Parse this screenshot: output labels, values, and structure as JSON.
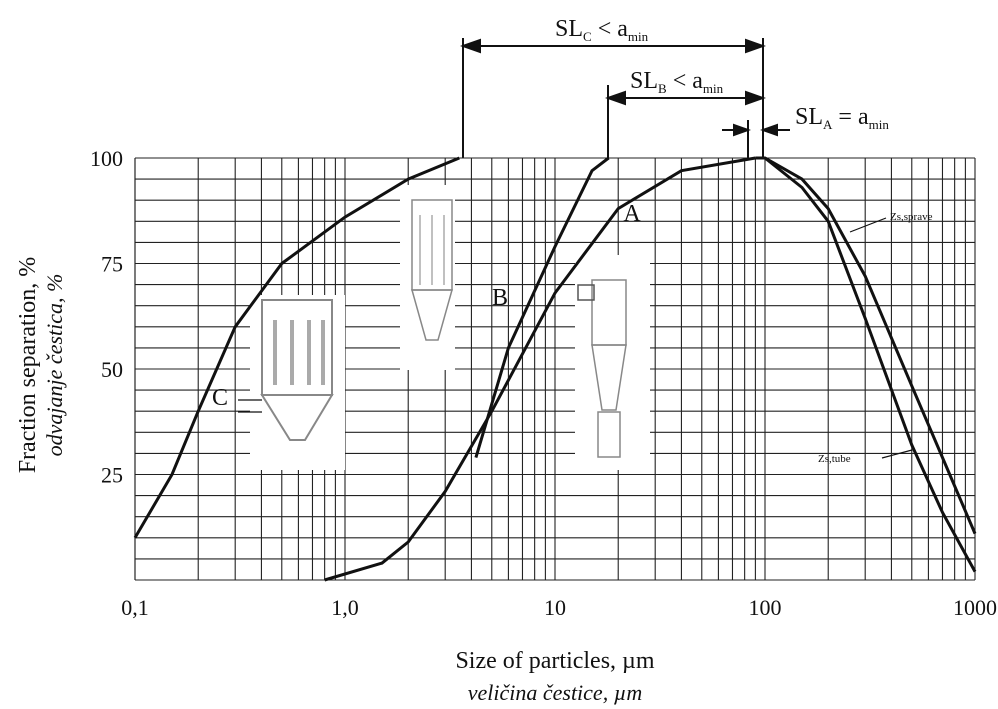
{
  "chart_data": {
    "type": "line",
    "xlabel": "Size of particles, µm",
    "xlabel2": "veličina čestice, µm",
    "ylabel": "Fraction separation, %",
    "ylabel2": "odvajanje čestica, %",
    "xscale": "log",
    "xlim": [
      0.1,
      1000
    ],
    "ylim": [
      0,
      100
    ],
    "xticks": [
      {
        "value": 0.1,
        "label": "0,1"
      },
      {
        "value": 1,
        "label": "1,0"
      },
      10,
      100,
      1000
    ],
    "yticks": [
      25,
      50,
      75,
      100
    ],
    "yminor": [
      5,
      10,
      15,
      20,
      30,
      35,
      40,
      45,
      55,
      60,
      65,
      70,
      80,
      85,
      90,
      95
    ],
    "grid": true,
    "xminor_grid": true,
    "series": [
      {
        "name": "C",
        "color": "#111111",
        "x": [
          0.1,
          0.15,
          0.2,
          0.3,
          0.5,
          1,
          2,
          3.5
        ],
        "values": [
          10,
          25,
          40,
          60,
          75,
          86,
          95,
          100
        ]
      },
      {
        "name": "B",
        "color": "#111111",
        "x": [
          4.2,
          6,
          10,
          15,
          18
        ],
        "values": [
          29,
          55,
          79,
          97,
          100
        ]
      },
      {
        "name": "A",
        "color": "#111111",
        "x": [
          0.8,
          1.5,
          2,
          3,
          5,
          10,
          20,
          40,
          90
        ],
        "values": [
          0,
          4,
          9,
          21,
          40,
          68,
          88,
          97,
          100
        ]
      },
      {
        "name": "Zs,sprave",
        "color": "#111111",
        "x": [
          90,
          100,
          150,
          200,
          300,
          500,
          700,
          1000
        ],
        "values": [
          100,
          100,
          95,
          88,
          72,
          46,
          29,
          11
        ]
      },
      {
        "name": "Zs,tube",
        "color": "#111111",
        "x": [
          100,
          150,
          200,
          300,
          500,
          700,
          1000
        ],
        "values": [
          100,
          93,
          85,
          62,
          32,
          16,
          2
        ]
      }
    ],
    "annotations": [
      {
        "main": "SL",
        "sub": "C",
        "rel": " < a",
        "sub2": "min"
      },
      {
        "main": "SL",
        "sub": "B",
        "rel": " < a",
        "sub2": "min"
      },
      {
        "main": "SL",
        "sub": "A",
        "rel": " = a",
        "sub2": "min"
      }
    ]
  }
}
